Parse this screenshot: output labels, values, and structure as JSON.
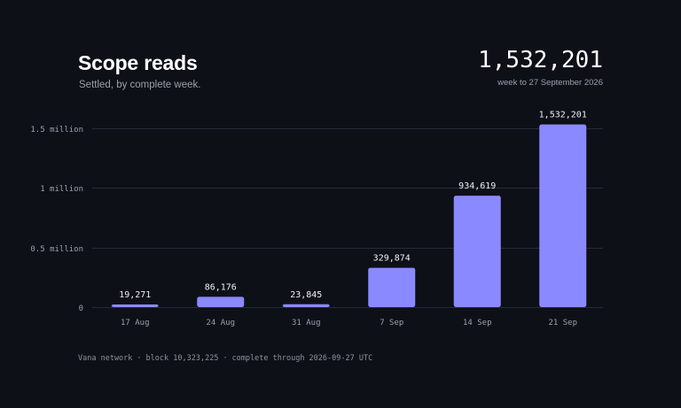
{
  "header": {
    "title": "Scope reads",
    "subtitle": "Settled, by complete week.",
    "headline_value": "1,532,201",
    "headline_caption": "week to 27 September 2026"
  },
  "footer": {
    "parts": [
      "Vana network",
      "block 10,323,225",
      "complete through 2026-09-27 UTC"
    ],
    "separator": "·"
  },
  "colors": {
    "background": "#0e1018",
    "bar": "#8b89ff",
    "grid": "#262a36",
    "text": "#e6e8ee",
    "muted": "#9aa0ad"
  },
  "chart_data": {
    "type": "bar",
    "title": "Scope reads",
    "subtitle": "Settled, by complete week.",
    "xlabel": "",
    "ylabel": "",
    "categories": [
      "17 Aug",
      "24 Aug",
      "31 Aug",
      "7 Sep",
      "14 Sep",
      "21 Sep"
    ],
    "values": [
      19271,
      86176,
      23845,
      329874,
      934619,
      1532201
    ],
    "value_labels": [
      "19,271",
      "86,176",
      "23,845",
      "329,874",
      "934,619",
      "1,532,201"
    ],
    "yticks": [
      0,
      500000,
      1000000,
      1500000
    ],
    "ytick_labels": [
      "0",
      "0.5 million",
      "1 million",
      "1.5 million"
    ],
    "ylim": [
      0,
      1500000
    ],
    "grid": true,
    "legend": "none"
  }
}
